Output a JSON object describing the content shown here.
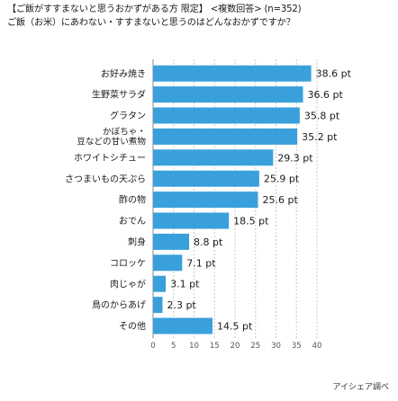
{
  "chart_data": {
    "type": "bar",
    "orientation": "horizontal",
    "title_lines": [
      "【ご飯がすすまないと思うおかずがある方 限定】 <複数回答> (n=352)",
      "ご飯（お米）にあわない・すすまないと思うのはどんなおかずですか？"
    ],
    "categories": [
      [
        "お好み焼き"
      ],
      [
        "生野菜サラダ"
      ],
      [
        "グラタン"
      ],
      [
        "かぼちゃ・",
        "豆などの甘い煮物"
      ],
      [
        "ホワイトシチュー"
      ],
      [
        "さつまいもの天ぷら"
      ],
      [
        "酢の物"
      ],
      [
        "おでん"
      ],
      [
        "刺身"
      ],
      [
        "コロッケ"
      ],
      [
        "肉じゃが"
      ],
      [
        "鳥のからあげ"
      ],
      [
        "その他"
      ]
    ],
    "values": [
      38.6,
      36.6,
      35.8,
      35.2,
      29.3,
      25.9,
      25.6,
      18.5,
      8.8,
      7.1,
      3.1,
      2.3,
      14.5
    ],
    "value_suffix": " pt",
    "xlim": [
      0,
      40
    ],
    "xticks": [
      0,
      5,
      10,
      15,
      20,
      25,
      30,
      35,
      40
    ],
    "grid": true,
    "bar_color": "#3aa0dc",
    "source": "アイシェア調べ"
  }
}
